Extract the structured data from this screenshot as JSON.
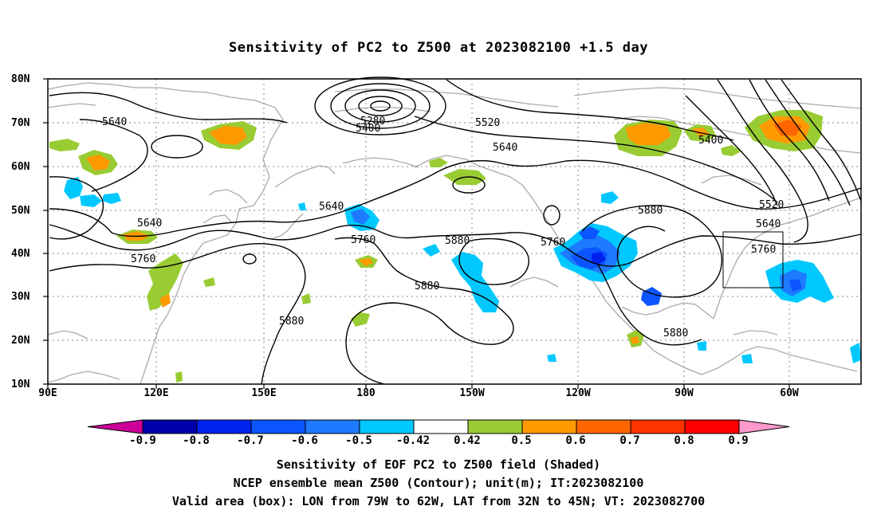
{
  "title": "Sensitivity of PC2 to Z500 at 2023082100 +1.5 day",
  "lat_labels": [
    "80N",
    "70N",
    "60N",
    "50N",
    "40N",
    "30N",
    "20N",
    "10N"
  ],
  "lon_labels": [
    "90E",
    "120E",
    "150E",
    "180",
    "150W",
    "120W",
    "90W",
    "60W"
  ],
  "contour_labels": [
    "5640",
    "5280",
    "5400",
    "5520",
    "5640",
    "5400",
    "5640",
    "5640",
    "5760",
    "5760",
    "5880",
    "5880",
    "5880",
    "5760",
    "5880",
    "5520",
    "5640",
    "5760",
    "5880"
  ],
  "colorbar": {
    "labels": [
      "-0.9",
      "-0.8",
      "-0.7",
      "-0.6",
      "-0.5",
      "-0.42",
      "0.42",
      "0.5",
      "0.6",
      "0.7",
      "0.8",
      "0.9"
    ],
    "colors": [
      "#cc0099",
      "#0000aa",
      "#0022ee",
      "#0a55ff",
      "#1e7aff",
      "#00c8ff",
      "#ffffff",
      "#99cc33",
      "#ff9900",
      "#ff6600",
      "#ff3300",
      "#ff0000",
      "#ff99cc"
    ]
  },
  "colors": {
    "green": "#99cc33",
    "orange": "#ff9900",
    "dark_orange": "#ff6600",
    "cyan": "#00c8ff",
    "light_blue": "#1e7aff",
    "blue": "#0a55ff",
    "dark_blue": "#0022ee",
    "coast": "#aaaaaa"
  },
  "captions": [
    "Sensitivity of EOF PC2 to Z500 field (Shaded)",
    "NCEP ensemble mean Z500 (Contour); unit(m); IT:2023082100",
    "Valid area (box): LON from 79W to 62W, LAT from 32N to 45N; VT: 2023082700"
  ]
}
